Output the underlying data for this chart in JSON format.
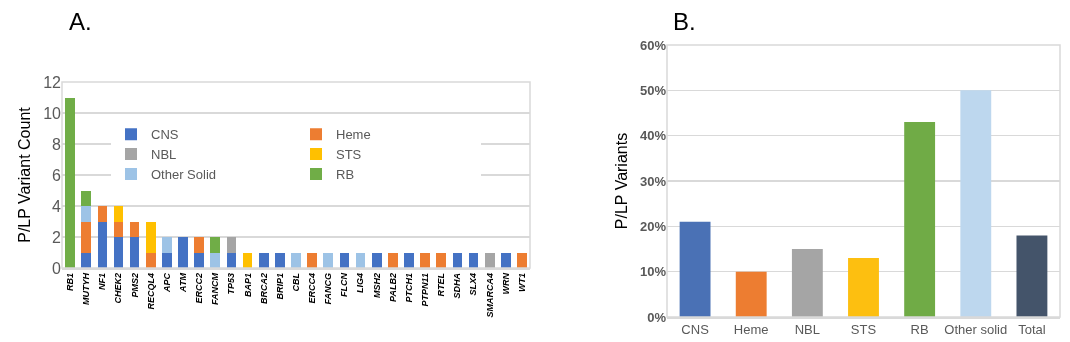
{
  "chart_data": [
    {
      "type": "bar",
      "title": "A.",
      "ylabel": "P/LP Variant Count",
      "stacked": true,
      "grid": "y",
      "legend": "top",
      "ylim": [
        0,
        12
      ],
      "yticks": [
        0,
        2,
        4,
        6,
        8,
        10,
        12
      ],
      "categories": [
        "RB1",
        "MUTYH",
        "NF1",
        "CHEK2",
        "PMS2",
        "RECQL4",
        "APC",
        "ATM",
        "ERCC2",
        "FANCM",
        "TP53",
        "BAP1",
        "BRCA2",
        "BRIP1",
        "CBL",
        "ERCC4",
        "FANCG",
        "FLCN",
        "LIG4",
        "MSH2",
        "PALB2",
        "PTCH1",
        "PTPN11",
        "RTEL",
        "SDHA",
        "SLX4",
        "SMARCA4",
        "WRN",
        "WT1"
      ],
      "series": [
        {
          "name": "CNS",
          "color": "#4472c4",
          "values": [
            0,
            1,
            3,
            2,
            2,
            0,
            1,
            2,
            1,
            0,
            1,
            0,
            1,
            1,
            0,
            0,
            0,
            1,
            0,
            1,
            0,
            1,
            0,
            0,
            1,
            1,
            0,
            1,
            0
          ]
        },
        {
          "name": "Heme",
          "color": "#ed7d31",
          "values": [
            0,
            2,
            1,
            1,
            1,
            1,
            0,
            0,
            1,
            0,
            0,
            0,
            0,
            0,
            0,
            1,
            0,
            0,
            0,
            0,
            1,
            0,
            1,
            1,
            0,
            0,
            0,
            0,
            1
          ]
        },
        {
          "name": "NBL",
          "color": "#a5a5a5",
          "values": [
            0,
            0,
            0,
            0,
            0,
            0,
            0,
            0,
            0,
            0,
            1,
            0,
            0,
            0,
            0,
            0,
            0,
            0,
            0,
            0,
            0,
            0,
            0,
            0,
            0,
            0,
            1,
            0,
            0
          ]
        },
        {
          "name": "STS",
          "color": "#ffc000",
          "values": [
            0,
            0,
            0,
            1,
            0,
            2,
            0,
            0,
            0,
            0,
            0,
            1,
            0,
            0,
            0,
            0,
            0,
            0,
            0,
            0,
            0,
            0,
            0,
            0,
            0,
            0,
            0,
            0,
            0
          ]
        },
        {
          "name": "Other Solid",
          "color": "#9dc3e6",
          "values": [
            0,
            1,
            0,
            0,
            0,
            0,
            1,
            0,
            0,
            1,
            0,
            0,
            0,
            0,
            1,
            0,
            1,
            0,
            1,
            0,
            0,
            0,
            0,
            0,
            0,
            0,
            0,
            0,
            0
          ]
        },
        {
          "name": "RB",
          "color": "#70ad47",
          "values": [
            11,
            1,
            0,
            0,
            0,
            0,
            0,
            0,
            0,
            1,
            0,
            0,
            0,
            0,
            0,
            0,
            0,
            0,
            0,
            0,
            0,
            0,
            0,
            0,
            0,
            0,
            0,
            0,
            0
          ]
        }
      ]
    },
    {
      "type": "bar",
      "title": "B.",
      "ylabel": "P/LP Variants",
      "grid": "y",
      "ylim": [
        0,
        60
      ],
      "yticks": [
        {
          "value": 0,
          "label": "0%"
        },
        {
          "value": 10,
          "label": "10%"
        },
        {
          "value": 20,
          "label": "20%"
        },
        {
          "value": 30,
          "label": "30%"
        },
        {
          "value": 40,
          "label": "40%"
        },
        {
          "value": 50,
          "label": "50%"
        },
        {
          "value": 60,
          "label": "60%"
        }
      ],
      "categories": [
        "CNS",
        "Heme",
        "NBL",
        "STS",
        "RB",
        "Other solid",
        "Total"
      ],
      "values": [
        21,
        10,
        15,
        13,
        43,
        50,
        18
      ],
      "colors": [
        "#4a71b5",
        "#ed7d31",
        "#a5a5a5",
        "#fdbf10",
        "#70ab46",
        "#bdd7ee",
        "#44546a"
      ]
    }
  ]
}
